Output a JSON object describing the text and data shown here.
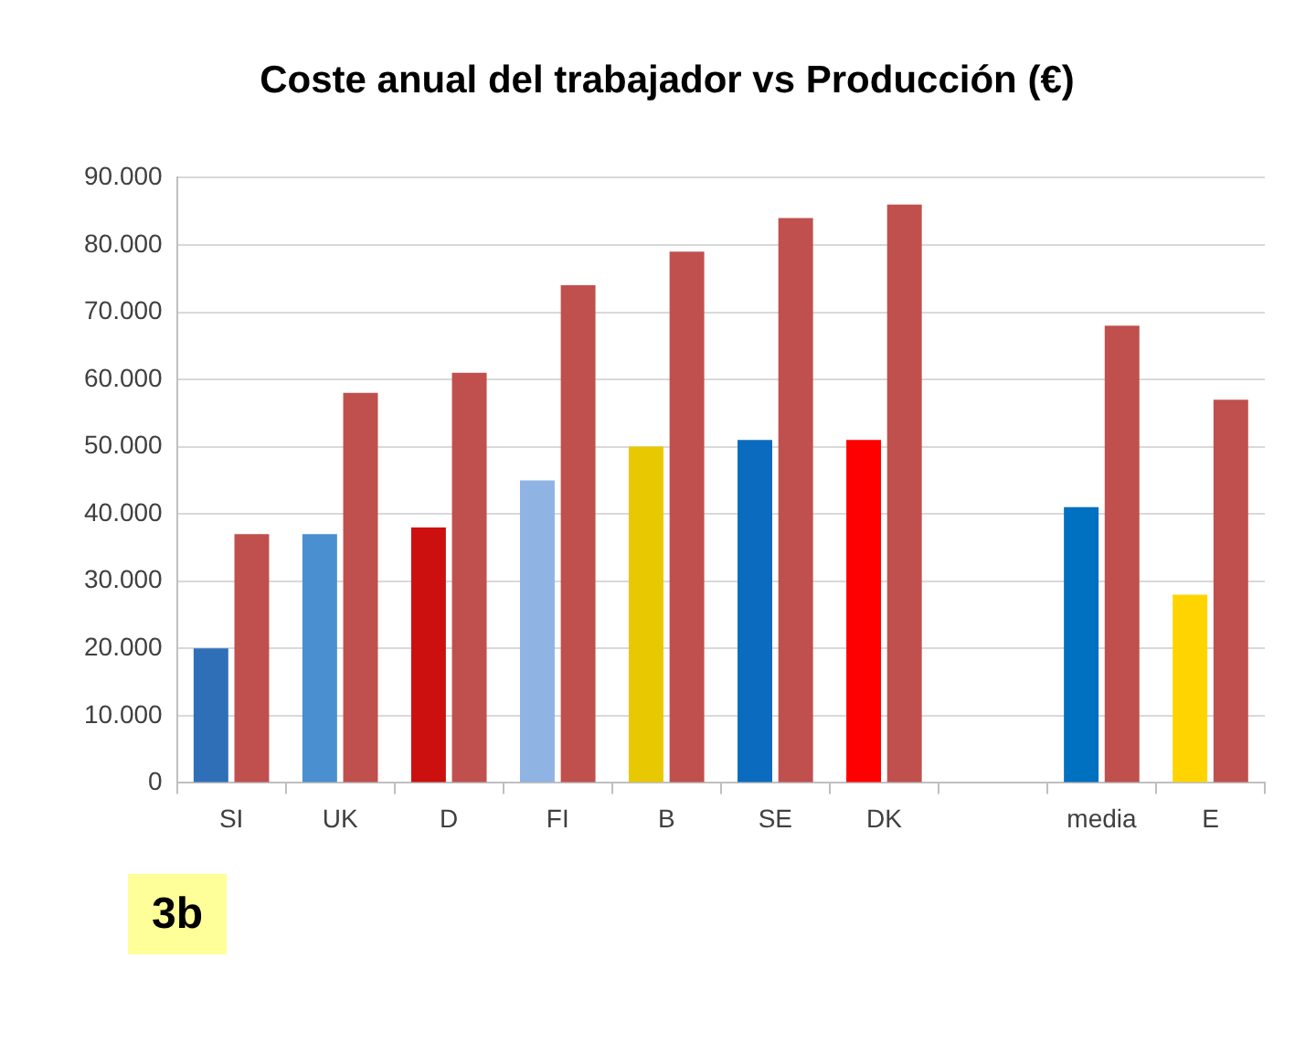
{
  "chart_data": {
    "type": "bar",
    "title": "Coste anual del trabajador vs Producción (€)",
    "categories": [
      "SI",
      "UK",
      "D",
      "FI",
      "B",
      "SE",
      "DK",
      null,
      "media",
      "E"
    ],
    "series": [
      {
        "colors": [
          "#2f6fb8",
          "#4a8fd0",
          "#cc1010",
          "#8fb3e3",
          "#e8c800",
          "#0a6bbf",
          "#ff0000",
          null,
          "#0070c0",
          "#ffd400"
        ],
        "values": [
          20000,
          37000,
          38000,
          45000,
          50000,
          51000,
          51000,
          null,
          41000,
          28000
        ]
      },
      {
        "color": "#c0504d",
        "values": [
          37000,
          58000,
          61000,
          74000,
          79000,
          84000,
          86000,
          null,
          68000,
          57000
        ]
      }
    ],
    "ylim": [
      0,
      90000
    ],
    "yticks": [
      0,
      {
        "value": 10000,
        "label": "10.000"
      },
      {
        "value": 20000,
        "label": "20.000"
      },
      {
        "value": 30000,
        "label": "30.000"
      },
      {
        "value": 40000,
        "label": "40.000"
      },
      {
        "value": 50000,
        "label": "50.000"
      },
      {
        "value": 60000,
        "label": "60.000"
      },
      {
        "value": 70000,
        "label": "70.000"
      },
      {
        "value": 80000,
        "label": "80.000"
      },
      {
        "value": 90000,
        "label": "90.000"
      }
    ],
    "grid": "y",
    "annotations": [
      "3b"
    ]
  }
}
